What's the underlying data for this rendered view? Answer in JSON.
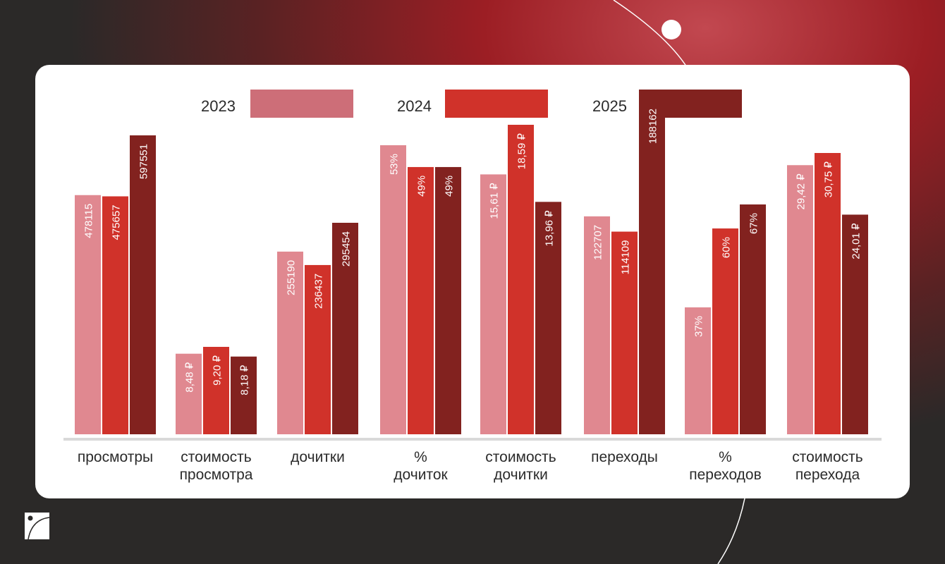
{
  "chart_data": {
    "type": "bar",
    "title": "",
    "legend_position": "top",
    "grid": false,
    "categories": [
      "просмотры",
      "стоимость\nпросмотра",
      "дочитки",
      "%\nдочиток",
      "стоимость\nдочитки",
      "переходы",
      "%\nпереходов",
      "стоимость\nперехода"
    ],
    "series": [
      {
        "name": "2023",
        "color": "#e08890",
        "legend_color": "#cd6e78",
        "values": [
          478115,
          8.48,
          255190,
          53,
          15.61,
          122707,
          37,
          29.42
        ],
        "labels": [
          "478115",
          "8,48 ₽",
          "255190",
          "53%",
          "15,61 ₽",
          "122707",
          "37%",
          "29,42 ₽"
        ]
      },
      {
        "name": "2024",
        "color": "#d0322a",
        "legend_color": "#d0322a",
        "values": [
          475657,
          9.2,
          236437,
          49,
          18.59,
          114109,
          60,
          30.75
        ],
        "labels": [
          "475657",
          "9,20 ₽",
          "236437",
          "49%",
          "18,59 ₽",
          "114109",
          "60%",
          "30,75 ₽"
        ]
      },
      {
        "name": "2025",
        "color": "#82221f",
        "legend_color": "#82221f",
        "values": [
          597551,
          8.18,
          295454,
          49,
          13.96,
          188162,
          67,
          24.01
        ],
        "labels": [
          "597551",
          "8,18 ₽",
          "295454",
          "49%",
          "13,96 ₽",
          "188162",
          "67%",
          "24,01 ₽"
        ]
      }
    ]
  }
}
